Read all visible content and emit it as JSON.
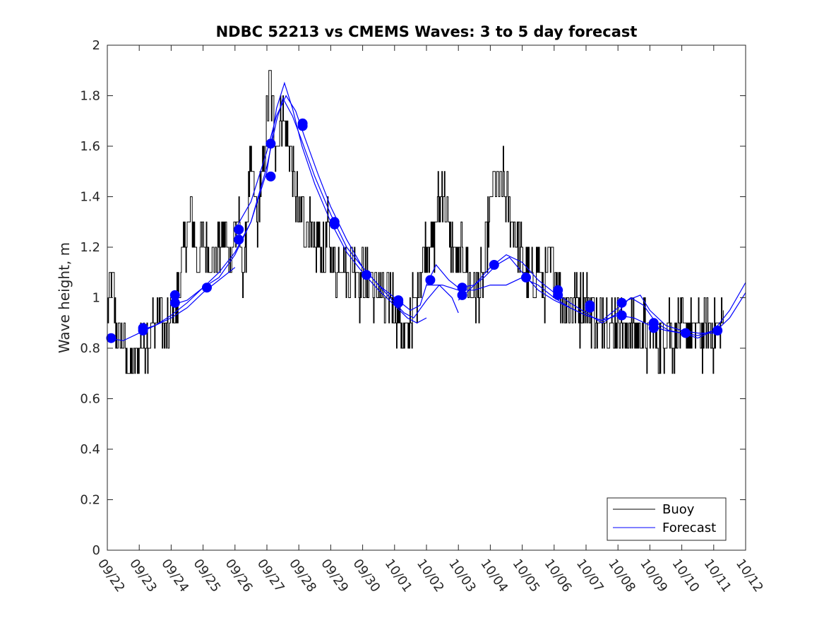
{
  "chart_data": {
    "type": "line",
    "title": "NDBC 52213 vs CMEMS Waves: 3 to 5 day forecast",
    "xlabel": "",
    "ylabel": "Wave height, m",
    "xlim": [
      0,
      20
    ],
    "ylim": [
      0,
      2
    ],
    "x_tick_labels": [
      "09/22",
      "09/23",
      "09/24",
      "09/25",
      "09/26",
      "09/27",
      "09/28",
      "09/29",
      "09/30",
      "10/01",
      "10/02",
      "10/03",
      "10/04",
      "10/05",
      "10/06",
      "10/07",
      "10/08",
      "10/09",
      "10/10",
      "10/11",
      "10/12"
    ],
    "y_ticks": [
      0,
      0.2,
      0.4,
      0.6,
      0.8,
      1,
      1.2,
      1.4,
      1.6,
      1.8,
      2
    ],
    "y_tick_labels": [
      "0",
      "0.2",
      "0.4",
      "0.6",
      "0.8",
      "1",
      "1.2",
      "1.4",
      "1.6",
      "1.8",
      "2"
    ],
    "legend": {
      "position": "bottom-right",
      "entries": [
        {
          "label": "Buoy",
          "color": "#000000"
        },
        {
          "label": "Forecast",
          "color": "#0000ff"
        }
      ]
    },
    "colors": {
      "buoy": "#000000",
      "forecast": "#0000ff",
      "marker": "#0000ff"
    },
    "buoy_anchors": [
      [
        0.0,
        0.95
      ],
      [
        0.1,
        1.1
      ],
      [
        0.2,
        1.0
      ],
      [
        0.3,
        0.85
      ],
      [
        0.4,
        0.85
      ],
      [
        0.5,
        0.8
      ],
      [
        0.6,
        0.75
      ],
      [
        0.7,
        0.7
      ],
      [
        0.8,
        0.75
      ],
      [
        0.9,
        0.75
      ],
      [
        1.0,
        0.8
      ],
      [
        1.1,
        0.85
      ],
      [
        1.2,
        0.85
      ],
      [
        1.3,
        0.85
      ],
      [
        1.4,
        0.9
      ],
      [
        1.5,
        0.9
      ],
      [
        1.6,
        0.95
      ],
      [
        1.7,
        0.95
      ],
      [
        1.8,
        0.85
      ],
      [
        1.9,
        0.85
      ],
      [
        2.0,
        0.95
      ],
      [
        2.1,
        0.95
      ],
      [
        2.2,
        1.0
      ],
      [
        2.3,
        1.1
      ],
      [
        2.4,
        1.2
      ],
      [
        2.5,
        1.25
      ],
      [
        2.6,
        1.35
      ],
      [
        2.7,
        1.25
      ],
      [
        2.8,
        1.15
      ],
      [
        2.9,
        1.2
      ],
      [
        3.0,
        1.25
      ],
      [
        3.1,
        1.2
      ],
      [
        3.2,
        1.15
      ],
      [
        3.3,
        1.2
      ],
      [
        3.4,
        1.15
      ],
      [
        3.5,
        1.2
      ],
      [
        3.6,
        1.25
      ],
      [
        3.7,
        1.25
      ],
      [
        3.8,
        1.15
      ],
      [
        3.9,
        1.25
      ],
      [
        4.0,
        1.25
      ],
      [
        4.1,
        1.3
      ],
      [
        4.2,
        1.15
      ],
      [
        4.3,
        1.15
      ],
      [
        4.4,
        1.4
      ],
      [
        4.5,
        1.5
      ],
      [
        4.6,
        1.4
      ],
      [
        4.7,
        1.3
      ],
      [
        4.8,
        1.45
      ],
      [
        4.9,
        1.55
      ],
      [
        5.0,
        1.7
      ],
      [
        5.1,
        1.85
      ],
      [
        5.2,
        1.7
      ],
      [
        5.3,
        1.6
      ],
      [
        5.4,
        1.7
      ],
      [
        5.5,
        1.75
      ],
      [
        5.6,
        1.65
      ],
      [
        5.7,
        1.6
      ],
      [
        5.8,
        1.5
      ],
      [
        5.9,
        1.4
      ],
      [
        6.0,
        1.3
      ],
      [
        6.1,
        1.35
      ],
      [
        6.2,
        1.25
      ],
      [
        6.3,
        1.3
      ],
      [
        6.4,
        1.2
      ],
      [
        6.5,
        1.15
      ],
      [
        6.6,
        1.25
      ],
      [
        6.7,
        1.2
      ],
      [
        6.8,
        1.15
      ],
      [
        6.9,
        1.25
      ],
      [
        7.0,
        1.2
      ],
      [
        7.1,
        1.15
      ],
      [
        7.2,
        1.1
      ],
      [
        7.3,
        1.2
      ],
      [
        7.4,
        1.15
      ],
      [
        7.5,
        1.1
      ],
      [
        7.6,
        1.1
      ],
      [
        7.7,
        1.15
      ],
      [
        7.8,
        1.1
      ],
      [
        7.9,
        1.05
      ],
      [
        8.0,
        1.1
      ],
      [
        8.1,
        1.05
      ],
      [
        8.2,
        1.1
      ],
      [
        8.3,
        1.05
      ],
      [
        8.4,
        1.0
      ],
      [
        8.5,
        1.05
      ],
      [
        8.6,
        1.0
      ],
      [
        8.7,
        0.95
      ],
      [
        8.8,
        1.0
      ],
      [
        8.9,
        1.05
      ],
      [
        9.0,
        0.95
      ],
      [
        9.1,
        0.95
      ],
      [
        9.2,
        0.9
      ],
      [
        9.3,
        0.85
      ],
      [
        9.4,
        0.85
      ],
      [
        9.5,
        0.95
      ],
      [
        9.6,
        0.95
      ],
      [
        9.7,
        1.0
      ],
      [
        9.8,
        1.1
      ],
      [
        9.9,
        1.15
      ],
      [
        10.0,
        1.2
      ],
      [
        10.1,
        1.25
      ],
      [
        10.2,
        1.2
      ],
      [
        10.3,
        1.3
      ],
      [
        10.4,
        1.4
      ],
      [
        10.5,
        1.45
      ],
      [
        10.6,
        1.35
      ],
      [
        10.7,
        1.25
      ],
      [
        10.8,
        1.2
      ],
      [
        10.9,
        1.15
      ],
      [
        11.0,
        1.1
      ],
      [
        11.1,
        1.2
      ],
      [
        11.2,
        1.15
      ],
      [
        11.3,
        1.1
      ],
      [
        11.4,
        1.05
      ],
      [
        11.5,
        1.05
      ],
      [
        11.6,
        1.0
      ],
      [
        11.7,
        1.05
      ],
      [
        11.8,
        1.1
      ],
      [
        11.9,
        1.25
      ],
      [
        12.0,
        1.35
      ],
      [
        12.1,
        1.45
      ],
      [
        12.2,
        1.45
      ],
      [
        12.3,
        1.4
      ],
      [
        12.4,
        1.45
      ],
      [
        12.5,
        1.4
      ],
      [
        12.6,
        1.35
      ],
      [
        12.7,
        1.3
      ],
      [
        12.8,
        1.25
      ],
      [
        12.9,
        1.2
      ],
      [
        13.0,
        1.15
      ],
      [
        13.1,
        1.1
      ],
      [
        13.2,
        1.1
      ],
      [
        13.3,
        1.05
      ],
      [
        13.4,
        1.1
      ],
      [
        13.5,
        1.15
      ],
      [
        13.6,
        1.05
      ],
      [
        13.7,
        1.05
      ],
      [
        13.8,
        1.1
      ],
      [
        13.9,
        1.15
      ],
      [
        14.0,
        1.15
      ],
      [
        14.1,
        1.05
      ],
      [
        14.2,
        1.0
      ],
      [
        14.3,
        1.0
      ],
      [
        14.4,
        0.95
      ],
      [
        14.5,
        0.95
      ],
      [
        14.6,
        1.0
      ],
      [
        14.7,
        1.0
      ],
      [
        14.8,
        0.95
      ],
      [
        14.9,
        1.0
      ],
      [
        15.0,
        1.0
      ],
      [
        15.1,
        0.95
      ],
      [
        15.2,
        0.95
      ],
      [
        15.3,
        0.9
      ],
      [
        15.4,
        0.9
      ],
      [
        15.5,
        0.95
      ],
      [
        15.6,
        0.95
      ],
      [
        15.7,
        0.85
      ],
      [
        15.8,
        0.9
      ],
      [
        15.9,
        0.9
      ],
      [
        16.0,
        0.95
      ],
      [
        16.1,
        0.9
      ],
      [
        16.2,
        0.85
      ],
      [
        16.3,
        0.85
      ],
      [
        16.4,
        0.9
      ],
      [
        16.5,
        0.9
      ],
      [
        16.6,
        0.85
      ],
      [
        16.7,
        0.85
      ],
      [
        16.8,
        0.9
      ],
      [
        16.9,
        0.8
      ],
      [
        17.0,
        0.85
      ],
      [
        17.1,
        0.9
      ],
      [
        17.2,
        0.85
      ],
      [
        17.3,
        0.8
      ],
      [
        17.4,
        0.85
      ],
      [
        17.5,
        0.85
      ],
      [
        17.6,
        0.9
      ],
      [
        17.7,
        0.8
      ],
      [
        17.8,
        0.85
      ],
      [
        17.9,
        0.9
      ],
      [
        18.0,
        0.85
      ],
      [
        18.1,
        0.85
      ],
      [
        18.2,
        0.9
      ],
      [
        18.3,
        0.85
      ],
      [
        18.4,
        0.85
      ],
      [
        18.5,
        0.9
      ],
      [
        18.6,
        0.85
      ],
      [
        18.7,
        0.85
      ],
      [
        18.8,
        0.9
      ],
      [
        18.9,
        0.85
      ],
      [
        19.0,
        0.85
      ],
      [
        19.1,
        0.9
      ],
      [
        19.2,
        0.9
      ],
      [
        19.3,
        0.95
      ]
    ],
    "forecast_lines": [
      [
        [
          0,
          0.84
        ],
        [
          0.5,
          0.83
        ],
        [
          1,
          0.86
        ],
        [
          1.5,
          0.89
        ],
        [
          2,
          0.92
        ],
        [
          2.5,
          0.96
        ],
        [
          3,
          1.02
        ],
        [
          3.5,
          1.07
        ],
        [
          4,
          1.12
        ]
      ],
      [
        [
          1,
          0.87
        ],
        [
          1.5,
          0.89
        ],
        [
          2,
          0.93
        ],
        [
          2.5,
          0.98
        ],
        [
          3,
          1.04
        ],
        [
          3.5,
          1.1
        ],
        [
          4,
          1.18
        ],
        [
          4.5,
          1.3
        ],
        [
          5,
          1.5
        ],
        [
          5.3,
          1.75
        ],
        [
          5.55,
          1.85
        ],
        [
          5.8,
          1.75
        ],
        [
          6.1,
          1.6
        ],
        [
          6.5,
          1.45
        ],
        [
          7,
          1.3
        ],
        [
          7.5,
          1.18
        ],
        [
          8,
          1.1
        ],
        [
          8.5,
          1.03
        ],
        [
          9,
          0.97
        ],
        [
          9.4,
          0.92
        ],
        [
          9.7,
          0.9
        ],
        [
          10,
          0.92
        ]
      ],
      [
        [
          2,
          0.97
        ],
        [
          2.5,
          0.99
        ],
        [
          3,
          1.04
        ],
        [
          3.5,
          1.08
        ],
        [
          4,
          1.17
        ],
        [
          4.5,
          1.3
        ],
        [
          5,
          1.52
        ],
        [
          5.3,
          1.7
        ],
        [
          5.5,
          1.79
        ],
        [
          5.8,
          1.72
        ],
        [
          6.1,
          1.62
        ],
        [
          6.5,
          1.48
        ],
        [
          7,
          1.33
        ],
        [
          7.5,
          1.2
        ],
        [
          8,
          1.12
        ],
        [
          8.5,
          1.05
        ],
        [
          9,
          0.98
        ],
        [
          9.3,
          0.94
        ],
        [
          9.6,
          0.92
        ],
        [
          10,
          0.99
        ],
        [
          10.4,
          1.05
        ],
        [
          10.8,
          1.0
        ],
        [
          11.0,
          0.94
        ]
      ],
      [
        [
          4,
          1.27
        ],
        [
          4.5,
          1.38
        ],
        [
          5,
          1.58
        ],
        [
          5.3,
          1.72
        ],
        [
          5.6,
          1.8
        ],
        [
          5.9,
          1.74
        ],
        [
          6.2,
          1.63
        ],
        [
          6.6,
          1.49
        ],
        [
          7,
          1.36
        ],
        [
          7.5,
          1.23
        ],
        [
          8,
          1.12
        ],
        [
          8.5,
          1.05
        ],
        [
          9,
          1.0
        ],
        [
          9.5,
          0.95
        ],
        [
          9.8,
          0.97
        ],
        [
          10.0,
          1.05
        ],
        [
          10.3,
          1.13
        ],
        [
          10.7,
          1.07
        ],
        [
          11.0,
          1.04
        ],
        [
          11.5,
          1.05
        ],
        [
          11.8,
          1.08
        ],
        [
          12.2,
          1.13
        ],
        [
          12.6,
          1.16
        ],
        [
          13,
          1.1
        ],
        [
          13.5,
          1.03
        ],
        [
          14,
          0.99
        ],
        [
          14.5,
          0.96
        ],
        [
          15,
          0.93
        ],
        [
          15.5,
          0.91
        ],
        [
          16,
          0.93
        ],
        [
          16.5,
          0.92
        ],
        [
          17,
          0.89
        ],
        [
          17.5,
          0.87
        ],
        [
          18,
          0.86
        ],
        [
          18.5,
          0.85
        ],
        [
          19,
          0.87
        ]
      ],
      [
        [
          10,
          1.05
        ],
        [
          10.5,
          1.05
        ],
        [
          11,
          1.03
        ],
        [
          11.5,
          1.03
        ],
        [
          12,
          1.05
        ],
        [
          12.5,
          1.05
        ],
        [
          13,
          1.08
        ],
        [
          13.5,
          1.05
        ],
        [
          14,
          1.0
        ],
        [
          14.5,
          0.96
        ],
        [
          15,
          0.93
        ],
        [
          15.5,
          0.91
        ],
        [
          16,
          0.96
        ],
        [
          16.4,
          1.0
        ],
        [
          16.8,
          0.97
        ],
        [
          17.2,
          0.9
        ],
        [
          17.6,
          0.87
        ],
        [
          18,
          0.86
        ],
        [
          18.5,
          0.84
        ],
        [
          19,
          0.87
        ],
        [
          19.5,
          0.95
        ],
        [
          20,
          1.06
        ]
      ],
      [
        [
          11,
          0.99
        ],
        [
          11.5,
          1.05
        ],
        [
          12,
          1.12
        ],
        [
          12.5,
          1.17
        ],
        [
          13,
          1.14
        ],
        [
          13.5,
          1.07
        ],
        [
          14,
          1.02
        ],
        [
          14.5,
          0.98
        ],
        [
          15,
          0.94
        ],
        [
          15.5,
          0.9
        ],
        [
          16,
          0.94
        ],
        [
          16.3,
          0.99
        ],
        [
          16.7,
          1.01
        ],
        [
          17,
          0.95
        ],
        [
          17.5,
          0.89
        ],
        [
          18,
          0.87
        ],
        [
          18.5,
          0.86
        ],
        [
          19,
          0.86
        ],
        [
          19.5,
          0.92
        ],
        [
          20,
          1.02
        ]
      ]
    ],
    "forecast_markers": [
      [
        0.12,
        0.84
      ],
      [
        1.12,
        0.88
      ],
      [
        1.12,
        0.87
      ],
      [
        2.12,
        1.01
      ],
      [
        2.12,
        0.98
      ],
      [
        3.12,
        1.04
      ],
      [
        4.12,
        1.27
      ],
      [
        4.12,
        1.23
      ],
      [
        5.12,
        1.61
      ],
      [
        5.12,
        1.48
      ],
      [
        6.12,
        1.69
      ],
      [
        6.12,
        1.68
      ],
      [
        7.12,
        1.3
      ],
      [
        7.12,
        1.29
      ],
      [
        8.12,
        1.09
      ],
      [
        9.12,
        0.99
      ],
      [
        9.12,
        0.98
      ],
      [
        10.12,
        1.07
      ],
      [
        11.12,
        1.04
      ],
      [
        11.12,
        1.01
      ],
      [
        12.12,
        1.13
      ],
      [
        13.12,
        1.08
      ],
      [
        14.12,
        1.03
      ],
      [
        14.12,
        1.01
      ],
      [
        15.12,
        0.97
      ],
      [
        15.12,
        0.96
      ],
      [
        16.12,
        0.98
      ],
      [
        16.12,
        0.93
      ],
      [
        17.12,
        0.9
      ],
      [
        17.12,
        0.88
      ],
      [
        18.12,
        0.86
      ],
      [
        19.12,
        0.87
      ]
    ]
  }
}
